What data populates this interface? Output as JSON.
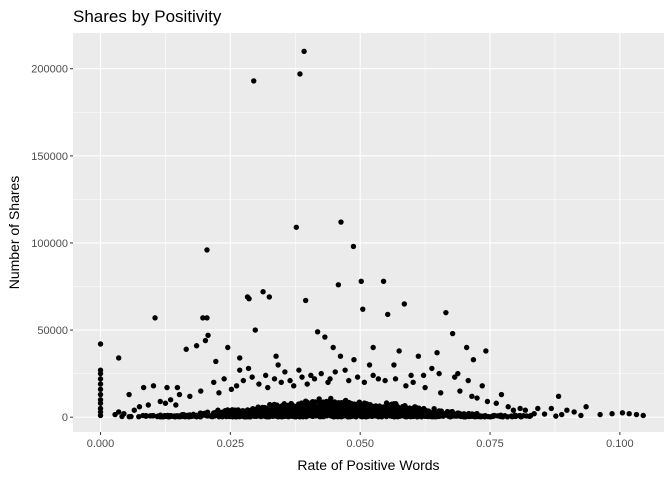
{
  "chart_data": {
    "type": "scatter",
    "title": "Shares by Positivity",
    "xlabel": "Rate of Positive Words",
    "ylabel": "Number of Shares",
    "xlim": [
      -0.0053,
      0.1085
    ],
    "ylim": [
      -8500,
      220500
    ],
    "x_ticks": [
      0.0,
      0.025,
      0.05,
      0.075,
      0.1
    ],
    "x_tick_labels": [
      "0.000",
      "0.025",
      "0.050",
      "0.075",
      "0.100"
    ],
    "y_ticks": [
      0,
      50000,
      100000,
      150000,
      200000
    ],
    "y_tick_labels": [
      "0",
      "50000",
      "100000",
      "150000",
      "200000"
    ],
    "grid": true,
    "legend": "none",
    "colors": {
      "panel": "#ebebeb",
      "grid": "#ffffff",
      "point": "#000000"
    },
    "series": [
      {
        "points": [
          [
            0.0,
            42000
          ],
          [
            0.0,
            27000
          ],
          [
            0.0,
            25000
          ],
          [
            0.0,
            22000
          ],
          [
            0.0,
            19000
          ],
          [
            0.0,
            16000
          ],
          [
            0.0,
            13000
          ],
          [
            0.0,
            10000
          ],
          [
            0.0,
            8000
          ],
          [
            0.0,
            5000
          ],
          [
            0.0,
            3000
          ],
          [
            0.0,
            1000
          ],
          [
            0.0035,
            34000
          ],
          [
            0.0055,
            13000
          ],
          [
            0.0105,
            57000
          ],
          [
            0.0083,
            17000
          ],
          [
            0.0102,
            18000
          ],
          [
            0.0128,
            17000
          ],
          [
            0.0148,
            17000
          ],
          [
            0.0165,
            39000
          ],
          [
            0.0185,
            41000
          ],
          [
            0.0197,
            57000
          ],
          [
            0.0205,
            57000
          ],
          [
            0.0202,
            44000
          ],
          [
            0.0207,
            47000
          ],
          [
            0.0205,
            96000
          ],
          [
            0.0222,
            32000
          ],
          [
            0.0245,
            40000
          ],
          [
            0.0268,
            34000
          ],
          [
            0.0283,
            69000
          ],
          [
            0.0286,
            68000
          ],
          [
            0.0298,
            50000
          ],
          [
            0.0313,
            72000
          ],
          [
            0.0325,
            69000
          ],
          [
            0.0295,
            193000
          ],
          [
            0.0377,
            109000
          ],
          [
            0.0384,
            197000
          ],
          [
            0.0392,
            210000
          ],
          [
            0.0395,
            67000
          ],
          [
            0.0418,
            49000
          ],
          [
            0.0432,
            46000
          ],
          [
            0.0448,
            40000
          ],
          [
            0.0458,
            76000
          ],
          [
            0.0463,
            112000
          ],
          [
            0.0487,
            98000
          ],
          [
            0.0502,
            78000
          ],
          [
            0.0505,
            62000
          ],
          [
            0.0545,
            78000
          ],
          [
            0.0553,
            59000
          ],
          [
            0.0585,
            65000
          ],
          [
            0.0525,
            40000
          ],
          [
            0.0665,
            60000
          ],
          [
            0.0678,
            48000
          ],
          [
            0.0705,
            40000
          ],
          [
            0.0718,
            33000
          ],
          [
            0.0742,
            38000
          ],
          [
            0.0735,
            18000
          ],
          [
            0.0772,
            13000
          ],
          [
            0.0795,
            4000
          ],
          [
            0.0818,
            4000
          ],
          [
            0.0842,
            5000
          ],
          [
            0.0868,
            5000
          ],
          [
            0.0882,
            12000
          ],
          [
            0.0898,
            4000
          ],
          [
            0.0912,
            3000
          ],
          [
            0.0935,
            6000
          ],
          [
            0.0962,
            1500
          ],
          [
            0.0985,
            2000
          ],
          [
            0.1005,
            2500
          ],
          [
            0.1018,
            2000
          ],
          [
            0.1032,
            1500
          ],
          [
            0.1045,
            1000
          ],
          [
            0.0888,
            1500
          ],
          [
            0.0925,
            1000
          ],
          [
            0.0835,
            2000
          ],
          [
            0.0855,
            1800
          ],
          [
            0.0648,
            37000
          ],
          [
            0.0612,
            35000
          ],
          [
            0.0575,
            38000
          ],
          [
            0.0565,
            30000
          ],
          [
            0.0338,
            35000
          ],
          [
            0.0342,
            30000
          ],
          [
            0.0268,
            27000
          ],
          [
            0.0285,
            28000
          ],
          [
            0.0355,
            26000
          ],
          [
            0.0382,
            27000
          ],
          [
            0.0405,
            24000
          ],
          [
            0.0488,
            33000
          ],
          [
            0.0462,
            35000
          ],
          [
            0.0471,
            27000
          ],
          [
            0.0518,
            30000
          ],
          [
            0.0525,
            24000
          ],
          [
            0.0598,
            24000
          ],
          [
            0.0622,
            24000
          ],
          [
            0.0652,
            25000
          ],
          [
            0.0688,
            25000
          ],
          [
            0.0708,
            21000
          ],
          [
            0.0682,
            23000
          ],
          [
            0.0638,
            28000
          ],
          [
            0.0548,
            21000
          ],
          [
            0.0568,
            22000
          ],
          [
            0.0588,
            18000
          ],
          [
            0.0602,
            20000
          ],
          [
            0.0625,
            17000
          ],
          [
            0.0655,
            14000
          ],
          [
            0.0692,
            15000
          ],
          [
            0.0715,
            12000
          ],
          [
            0.0725,
            11000
          ],
          [
            0.0745,
            9000
          ],
          [
            0.0762,
            8000
          ],
          [
            0.0785,
            6000
          ],
          [
            0.0808,
            5000
          ],
          [
            0.0152,
            13000
          ],
          [
            0.0172,
            12000
          ],
          [
            0.0193,
            15000
          ],
          [
            0.0218,
            20000
          ],
          [
            0.0228,
            14000
          ],
          [
            0.0238,
            22000
          ],
          [
            0.0252,
            16000
          ],
          [
            0.0262,
            18000
          ],
          [
            0.0275,
            21000
          ],
          [
            0.0292,
            23000
          ],
          [
            0.0305,
            19000
          ],
          [
            0.0318,
            24000
          ],
          [
            0.0322,
            17000
          ],
          [
            0.0335,
            22000
          ],
          [
            0.0348,
            20000
          ],
          [
            0.0365,
            21000
          ],
          [
            0.0372,
            18000
          ],
          [
            0.0388,
            23000
          ],
          [
            0.0398,
            19000
          ],
          [
            0.0412,
            22000
          ],
          [
            0.0425,
            25000
          ],
          [
            0.0438,
            20000
          ],
          [
            0.0442,
            22000
          ],
          [
            0.0452,
            26000
          ],
          [
            0.0478,
            21000
          ],
          [
            0.0495,
            23000
          ],
          [
            0.0508,
            20000
          ],
          [
            0.0535,
            22000
          ],
          [
            0.0115,
            9000
          ],
          [
            0.0125,
            8000
          ],
          [
            0.0135,
            10000
          ],
          [
            0.0145,
            7000
          ],
          [
            0.0092,
            7000
          ],
          [
            0.0075,
            6000
          ],
          [
            0.0065,
            4000
          ],
          [
            0.0045,
            2000
          ],
          [
            0.0028,
            1500
          ],
          [
            0.0035,
            3000
          ]
        ]
      }
    ]
  }
}
